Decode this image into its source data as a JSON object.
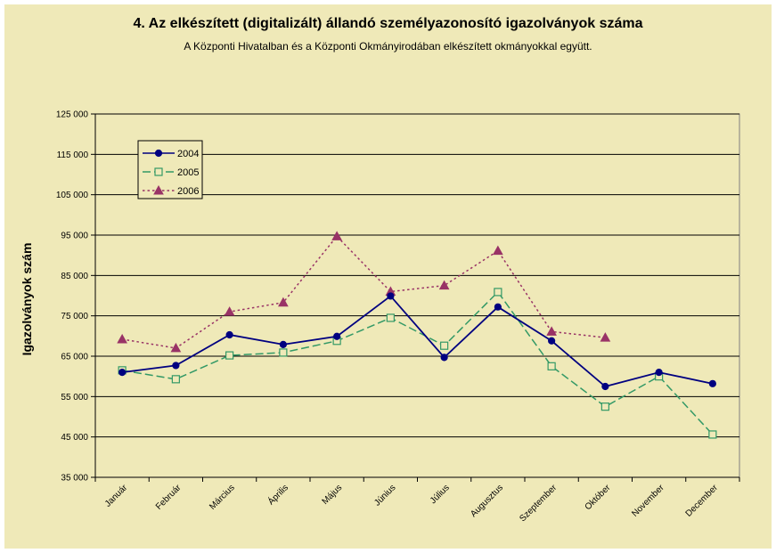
{
  "chart_data": {
    "type": "line",
    "title": "4. Az elkészített (digitalizált) állandó személyazonosító igazolványok száma",
    "subtitle": "A Központi Hivatalban és a Központi Okmányirodában elkészített okmányokkal együtt.",
    "ylabel": "Igazolványok szám",
    "xlabel": "",
    "ylim": [
      35000,
      125000
    ],
    "yticks": [
      "35 000",
      "45 000",
      "55 000",
      "65 000",
      "75 000",
      "85 000",
      "95 000",
      "105 000",
      "115 000",
      "125 000"
    ],
    "categories": [
      "Január",
      "Február",
      "Március",
      "Április",
      "Május",
      "Június",
      "Július",
      "Augusztus",
      "Szeptember",
      "Október",
      "November",
      "December"
    ],
    "grid": "horizontal",
    "legend_position": "top-left",
    "series": [
      {
        "name": "2004",
        "color": "#000080",
        "style": "solid",
        "marker": "circle",
        "values": [
          61000,
          62700,
          70300,
          67900,
          69900,
          79900,
          64700,
          77200,
          68800,
          57500,
          61000,
          58200
        ]
      },
      {
        "name": "2005",
        "color": "#339966",
        "style": "dashed",
        "marker": "square",
        "values": [
          61500,
          59300,
          65200,
          65900,
          68800,
          74500,
          67600,
          80900,
          62500,
          52500,
          60000,
          45600
        ]
      },
      {
        "name": "2006",
        "color": "#993366",
        "style": "dotted",
        "marker": "triangle",
        "values": [
          69200,
          67000,
          76000,
          78300,
          94700,
          81000,
          82500,
          91100,
          71100,
          69600,
          null,
          null
        ]
      }
    ]
  }
}
